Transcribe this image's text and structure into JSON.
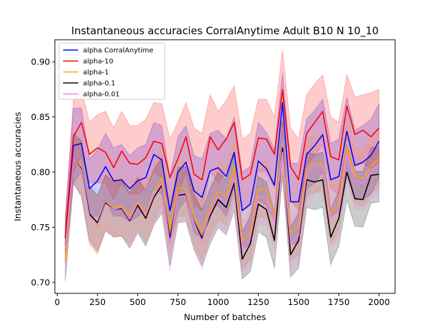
{
  "chart_data": {
    "type": "line",
    "title": "Instantaneous accuracies CorralAnytime Adult B10 N 10_10",
    "xlabel": "Number of batches",
    "ylabel": "Instantaneous accuracies",
    "xlim": [
      -15,
      2100
    ],
    "ylim": [
      0.69,
      0.92
    ],
    "xticks": [
      0,
      250,
      500,
      750,
      1000,
      1250,
      1500,
      1750,
      2000
    ],
    "xtick_labels": [
      "0",
      "250",
      "500",
      "750",
      "1000",
      "1250",
      "1500",
      "1750",
      "2000"
    ],
    "yticks": [
      0.7,
      0.75,
      0.8,
      0.85,
      0.9
    ],
    "ytick_labels": [
      "0.70",
      "0.75",
      "0.80",
      "0.85",
      "0.90"
    ],
    "legend_position": "top-left",
    "grid": false,
    "x": [
      50,
      100,
      150,
      200,
      250,
      300,
      350,
      400,
      450,
      500,
      550,
      600,
      650,
      700,
      750,
      800,
      850,
      900,
      950,
      1000,
      1050,
      1100,
      1150,
      1200,
      1250,
      1300,
      1350,
      1400,
      1450,
      1500,
      1550,
      1600,
      1650,
      1700,
      1750,
      1800,
      1850,
      1900,
      1950,
      2000
    ],
    "series": [
      {
        "name": "alpha CorralAnytime",
        "color": "#0000ff",
        "values": [
          0.74,
          0.824,
          0.826,
          0.785,
          0.792,
          0.805,
          0.792,
          0.793,
          0.785,
          0.792,
          0.795,
          0.816,
          0.811,
          0.765,
          0.8,
          0.809,
          0.783,
          0.777,
          0.801,
          0.804,
          0.796,
          0.818,
          0.765,
          0.771,
          0.81,
          0.803,
          0.788,
          0.863,
          0.773,
          0.773,
          0.816,
          0.824,
          0.834,
          0.793,
          0.796,
          0.837,
          0.806,
          0.809,
          0.815,
          0.828
        ],
        "band_low": [
          0.701,
          0.79,
          0.8,
          0.76,
          0.76,
          0.775,
          0.76,
          0.76,
          0.755,
          0.76,
          0.765,
          0.785,
          0.78,
          0.735,
          0.765,
          0.775,
          0.745,
          0.74,
          0.765,
          0.77,
          0.76,
          0.785,
          0.73,
          0.735,
          0.775,
          0.77,
          0.755,
          0.835,
          0.735,
          0.735,
          0.785,
          0.79,
          0.8,
          0.76,
          0.765,
          0.805,
          0.775,
          0.775,
          0.78,
          0.795
        ],
        "band_high": [
          0.76,
          0.858,
          0.858,
          0.812,
          0.82,
          0.835,
          0.822,
          0.825,
          0.815,
          0.822,
          0.825,
          0.845,
          0.842,
          0.795,
          0.832,
          0.842,
          0.815,
          0.812,
          0.835,
          0.838,
          0.83,
          0.85,
          0.8,
          0.805,
          0.845,
          0.836,
          0.82,
          0.89,
          0.808,
          0.808,
          0.848,
          0.856,
          0.866,
          0.826,
          0.83,
          0.868,
          0.838,
          0.842,
          0.848,
          0.862
        ]
      },
      {
        "name": "alpha-10",
        "color": "#ff0000",
        "values": [
          0.742,
          0.832,
          0.845,
          0.816,
          0.822,
          0.818,
          0.804,
          0.819,
          0.808,
          0.807,
          0.813,
          0.828,
          0.826,
          0.795,
          0.812,
          0.832,
          0.798,
          0.793,
          0.832,
          0.82,
          0.83,
          0.845,
          0.793,
          0.798,
          0.831,
          0.83,
          0.816,
          0.875,
          0.805,
          0.793,
          0.835,
          0.845,
          0.855,
          0.814,
          0.811,
          0.86,
          0.834,
          0.838,
          0.832,
          0.84
        ],
        "band_low": [
          0.725,
          0.8,
          0.815,
          0.79,
          0.79,
          0.79,
          0.775,
          0.79,
          0.78,
          0.78,
          0.785,
          0.8,
          0.795,
          0.765,
          0.78,
          0.8,
          0.77,
          0.765,
          0.8,
          0.79,
          0.8,
          0.815,
          0.765,
          0.77,
          0.8,
          0.8,
          0.785,
          0.845,
          0.775,
          0.765,
          0.805,
          0.815,
          0.825,
          0.785,
          0.78,
          0.83,
          0.805,
          0.808,
          0.803,
          0.81
        ],
        "band_high": [
          0.76,
          0.865,
          0.875,
          0.845,
          0.852,
          0.855,
          0.84,
          0.855,
          0.842,
          0.842,
          0.848,
          0.863,
          0.862,
          0.83,
          0.845,
          0.863,
          0.84,
          0.835,
          0.87,
          0.855,
          0.865,
          0.878,
          0.83,
          0.835,
          0.866,
          0.866,
          0.85,
          0.91,
          0.84,
          0.83,
          0.87,
          0.88,
          0.888,
          0.85,
          0.845,
          0.888,
          0.868,
          0.87,
          0.872,
          0.875
        ]
      },
      {
        "name": "alpha-1",
        "color": "#ffa500",
        "values": [
          0.72,
          0.812,
          0.805,
          0.76,
          0.751,
          0.773,
          0.768,
          0.769,
          0.76,
          0.773,
          0.763,
          0.78,
          0.795,
          0.748,
          0.786,
          0.785,
          0.76,
          0.746,
          0.768,
          0.783,
          0.778,
          0.804,
          0.737,
          0.745,
          0.785,
          0.784,
          0.76,
          0.823,
          0.745,
          0.75,
          0.803,
          0.808,
          0.809,
          0.761,
          0.772,
          0.822,
          0.797,
          0.794,
          0.805,
          0.812
        ],
        "band_low": [
          0.705,
          0.79,
          0.78,
          0.735,
          0.725,
          0.748,
          0.742,
          0.742,
          0.735,
          0.748,
          0.737,
          0.755,
          0.77,
          0.725,
          0.76,
          0.76,
          0.735,
          0.72,
          0.742,
          0.757,
          0.752,
          0.778,
          0.712,
          0.72,
          0.76,
          0.758,
          0.735,
          0.798,
          0.72,
          0.725,
          0.778,
          0.782,
          0.783,
          0.735,
          0.747,
          0.796,
          0.772,
          0.769,
          0.78,
          0.787
        ],
        "band_high": [
          0.735,
          0.835,
          0.83,
          0.785,
          0.777,
          0.798,
          0.794,
          0.796,
          0.785,
          0.798,
          0.789,
          0.805,
          0.82,
          0.772,
          0.812,
          0.81,
          0.785,
          0.772,
          0.794,
          0.809,
          0.804,
          0.83,
          0.762,
          0.77,
          0.81,
          0.81,
          0.785,
          0.848,
          0.77,
          0.775,
          0.828,
          0.834,
          0.835,
          0.787,
          0.797,
          0.848,
          0.822,
          0.819,
          0.83,
          0.837
        ]
      },
      {
        "name": "alpha-0.1",
        "color": "#000000",
        "values": [
          0.733,
          0.812,
          0.803,
          0.762,
          0.754,
          0.772,
          0.766,
          0.767,
          0.756,
          0.77,
          0.758,
          0.777,
          0.788,
          0.74,
          0.779,
          0.78,
          0.755,
          0.74,
          0.76,
          0.775,
          0.768,
          0.79,
          0.721,
          0.735,
          0.771,
          0.766,
          0.738,
          0.822,
          0.725,
          0.738,
          0.793,
          0.791,
          0.793,
          0.741,
          0.758,
          0.8,
          0.776,
          0.775,
          0.797,
          0.798
        ],
        "band_low": [
          0.718,
          0.79,
          0.778,
          0.738,
          0.728,
          0.747,
          0.741,
          0.742,
          0.731,
          0.745,
          0.733,
          0.752,
          0.763,
          0.715,
          0.754,
          0.755,
          0.73,
          0.715,
          0.735,
          0.75,
          0.743,
          0.765,
          0.703,
          0.71,
          0.746,
          0.741,
          0.713,
          0.797,
          0.705,
          0.713,
          0.768,
          0.766,
          0.768,
          0.716,
          0.733,
          0.775,
          0.751,
          0.75,
          0.772,
          0.773
        ],
        "band_high": [
          0.748,
          0.835,
          0.828,
          0.787,
          0.779,
          0.797,
          0.791,
          0.792,
          0.781,
          0.795,
          0.783,
          0.802,
          0.813,
          0.765,
          0.804,
          0.805,
          0.78,
          0.765,
          0.785,
          0.8,
          0.793,
          0.815,
          0.746,
          0.76,
          0.796,
          0.791,
          0.763,
          0.847,
          0.75,
          0.763,
          0.818,
          0.816,
          0.818,
          0.766,
          0.783,
          0.825,
          0.801,
          0.8,
          0.822,
          0.823
        ]
      },
      {
        "name": "alpha-0.01",
        "color": "#ee82ee",
        "values": [
          0.731,
          0.812,
          0.802,
          0.759,
          0.752,
          0.771,
          0.766,
          0.768,
          0.757,
          0.772,
          0.761,
          0.779,
          0.79,
          0.735,
          0.78,
          0.781,
          0.754,
          0.737,
          0.764,
          0.778,
          0.772,
          0.795,
          0.73,
          0.74,
          0.778,
          0.776,
          0.755,
          0.818,
          0.735,
          0.742,
          0.798,
          0.806,
          0.806,
          0.757,
          0.765,
          0.817,
          0.792,
          0.79,
          0.8,
          0.806
        ],
        "band_low": [
          0.716,
          0.79,
          0.777,
          0.734,
          0.727,
          0.746,
          0.741,
          0.743,
          0.732,
          0.747,
          0.736,
          0.754,
          0.765,
          0.71,
          0.755,
          0.756,
          0.729,
          0.712,
          0.739,
          0.753,
          0.747,
          0.77,
          0.705,
          0.715,
          0.753,
          0.751,
          0.73,
          0.793,
          0.71,
          0.717,
          0.773,
          0.781,
          0.781,
          0.732,
          0.74,
          0.792,
          0.767,
          0.765,
          0.775,
          0.781
        ],
        "band_high": [
          0.746,
          0.835,
          0.827,
          0.784,
          0.777,
          0.796,
          0.791,
          0.793,
          0.782,
          0.797,
          0.786,
          0.804,
          0.815,
          0.76,
          0.805,
          0.806,
          0.779,
          0.762,
          0.789,
          0.803,
          0.797,
          0.82,
          0.755,
          0.765,
          0.803,
          0.801,
          0.78,
          0.843,
          0.76,
          0.767,
          0.823,
          0.831,
          0.831,
          0.782,
          0.79,
          0.842,
          0.817,
          0.815,
          0.825,
          0.831
        ]
      }
    ]
  }
}
